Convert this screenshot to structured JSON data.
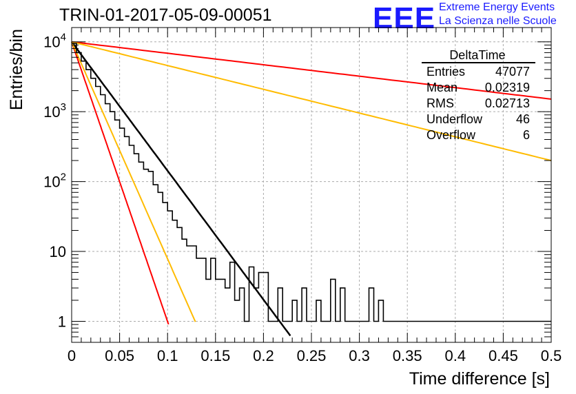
{
  "header": {
    "title": "TRIN-01-2017-05-09-00051",
    "logo_text": "EEE",
    "logo_line1": "Extreme Energy Events",
    "logo_line2": "La Scienza nelle Scuole"
  },
  "stats_box": {
    "name": "DeltaTime",
    "rows": [
      {
        "label": "Entries",
        "value": "47077"
      },
      {
        "label": "Mean",
        "value": "0.02319"
      },
      {
        "label": "RMS",
        "value": "0.02713"
      },
      {
        "label": "Underflow",
        "value": "46"
      },
      {
        "label": "Overflow",
        "value": "6"
      }
    ]
  },
  "chart_data": {
    "type": "line",
    "title": "TRIN-01-2017-05-09-00051",
    "xlabel": "Time difference [s]",
    "ylabel": "Entries/bin",
    "xlim": [
      0,
      0.5
    ],
    "ylim": [
      0.5,
      16000
    ],
    "yscale": "log",
    "grid": true,
    "x_ticks": [
      "0",
      "0.05",
      "0.1",
      "0.15",
      "0.2",
      "0.25",
      "0.3",
      "0.35",
      "0.4",
      "0.45",
      "0.5"
    ],
    "y_ticks": [
      {
        "value": 1,
        "label": "1"
      },
      {
        "value": 10,
        "label": "10"
      },
      {
        "value": 100,
        "label": "10",
        "exp": "2"
      },
      {
        "value": 1000,
        "label": "10",
        "exp": "3"
      },
      {
        "value": 10000,
        "label": "10",
        "exp": "4"
      }
    ],
    "histogram": {
      "color": "#000000",
      "bin_width": 0.005,
      "x_start": 0,
      "values": [
        9500,
        7000,
        5300,
        4000,
        3000,
        2300,
        1750,
        1300,
        1000,
        760,
        580,
        440,
        330,
        250,
        190,
        150,
        140,
        90,
        70,
        50,
        38,
        28,
        22,
        15,
        12,
        12,
        8,
        8,
        4,
        8,
        4,
        4,
        3,
        7,
        2,
        3,
        1,
        6,
        3,
        5,
        5,
        1,
        1,
        3,
        1,
        1,
        2,
        1,
        3,
        1,
        1,
        2,
        1,
        1,
        4,
        1,
        3,
        1,
        1,
        1,
        1,
        1,
        3,
        1,
        2,
        1,
        1,
        1,
        1,
        1,
        1,
        1,
        1,
        1,
        1,
        1,
        1,
        1,
        1,
        1,
        1,
        1,
        1,
        1,
        1,
        1,
        1,
        1,
        1,
        1,
        1,
        1,
        1,
        1,
        1,
        1,
        1,
        1,
        1,
        1
      ]
    },
    "series": [
      {
        "color": "#000000",
        "a": 10000,
        "tau": 0.02354,
        "x_range": [
          0,
          0.228
        ]
      },
      {
        "color": "#ff0000",
        "a": 10000,
        "tau": 0.01085,
        "x_range": [
          0,
          0.101
        ]
      },
      {
        "color": "#ffbb00",
        "a": 10000,
        "tau": 0.01398,
        "x_range": [
          0,
          0.129
        ]
      },
      {
        "color": "#ff0000",
        "a": 10000,
        "tau": 0.2648,
        "x_range": [
          0,
          0.5
        ]
      },
      {
        "color": "#ffbb00",
        "a": 10000,
        "tau": 0.1278,
        "x_range": [
          0,
          0.5
        ]
      }
    ]
  }
}
